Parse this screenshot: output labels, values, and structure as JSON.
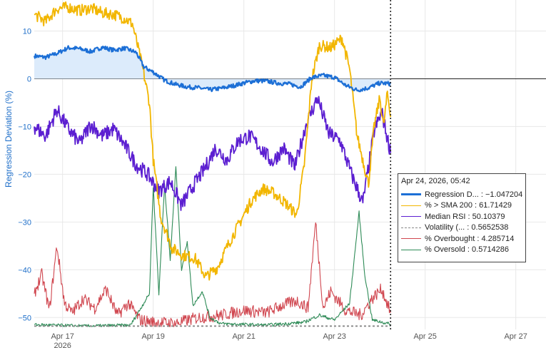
{
  "chart_data": {
    "type": "line",
    "title": "",
    "ylabel": "Regression Deviation (%)",
    "xlabel": "",
    "x_ticks": [
      "Apr 17",
      "Apr 19",
      "Apr 21",
      "Apr 23",
      "Apr 25",
      "Apr 27"
    ],
    "x_year_label": "2026",
    "x_range": [
      "2026-04-16 09:00",
      "2026-04-27 16:00"
    ],
    "y_ticks": [
      10,
      0,
      -10,
      -20,
      -30,
      -40,
      -50
    ],
    "ylim": [
      -52.5,
      16.5
    ],
    "zero_line": 0,
    "grid": true,
    "cursor_time": "2026-04-24 05:42",
    "series": [
      {
        "name": "Regression D...",
        "color": "#1c6fd6",
        "fill_to_zero": true,
        "fill_color": "#dcebfb",
        "points": [
          [
            "2026-04-16 09:00",
            4.8
          ],
          [
            "2026-04-16 15:00",
            4.5
          ],
          [
            "2026-04-16 21:00",
            5.3
          ],
          [
            "2026-04-17 03:00",
            6.5
          ],
          [
            "2026-04-17 09:00",
            6.3
          ],
          [
            "2026-04-17 15:00",
            5.7
          ],
          [
            "2026-04-17 21:00",
            6.6
          ],
          [
            "2026-04-18 03:00",
            6.0
          ],
          [
            "2026-04-18 09:00",
            6.4
          ],
          [
            "2026-04-18 15:00",
            5.5
          ],
          [
            "2026-04-18 19:00",
            2.5
          ],
          [
            "2026-04-19 00:00",
            1.4
          ],
          [
            "2026-04-19 06:00",
            -0.3
          ],
          [
            "2026-04-19 12:00",
            -1.2
          ],
          [
            "2026-04-19 18:00",
            -1.7
          ],
          [
            "2026-04-20 00:00",
            -1.9
          ],
          [
            "2026-04-20 06:00",
            -2.3
          ],
          [
            "2026-04-20 12:00",
            -2.0
          ],
          [
            "2026-04-20 18:00",
            -1.5
          ],
          [
            "2026-04-21 00:00",
            -0.9
          ],
          [
            "2026-04-21 06:00",
            -0.4
          ],
          [
            "2026-04-21 12:00",
            -0.5
          ],
          [
            "2026-04-21 18:00",
            -0.9
          ],
          [
            "2026-04-22 00:00",
            -1.1
          ],
          [
            "2026-04-22 06:00",
            -1.7
          ],
          [
            "2026-04-22 12:00",
            0.3
          ],
          [
            "2026-04-22 18:00",
            0.7
          ],
          [
            "2026-04-23 00:00",
            0.3
          ],
          [
            "2026-04-23 06:00",
            -1.4
          ],
          [
            "2026-04-23 12:00",
            -2.4
          ],
          [
            "2026-04-23 18:00",
            -1.9
          ],
          [
            "2026-04-24 00:00",
            -0.9
          ],
          [
            "2026-04-24 05:42",
            -1.047204
          ]
        ]
      },
      {
        "name": "% > SMA 200",
        "color": "#f2b600",
        "points": [
          [
            "2026-04-16 09:00",
            13.5
          ],
          [
            "2026-04-16 15:00",
            12.0
          ],
          [
            "2026-04-16 21:00",
            14.7
          ],
          [
            "2026-04-17 03:00",
            15.0
          ],
          [
            "2026-04-17 09:00",
            14.3
          ],
          [
            "2026-04-17 15:00",
            14.8
          ],
          [
            "2026-04-17 21:00",
            13.8
          ],
          [
            "2026-04-18 03:00",
            13.5
          ],
          [
            "2026-04-18 09:00",
            12.6
          ],
          [
            "2026-04-18 13:00",
            11.5
          ],
          [
            "2026-04-18 18:00",
            3.0
          ],
          [
            "2026-04-18 22:00",
            -5.0
          ],
          [
            "2026-04-19 00:00",
            -17.0
          ],
          [
            "2026-04-19 04:00",
            -29.0
          ],
          [
            "2026-04-19 10:00",
            -35.5
          ],
          [
            "2026-04-19 16:00",
            -37.0
          ],
          [
            "2026-04-19 22:00",
            -37.5
          ],
          [
            "2026-04-20 04:00",
            -41.5
          ],
          [
            "2026-04-20 10:00",
            -39.5
          ],
          [
            "2026-04-20 16:00",
            -34.5
          ],
          [
            "2026-04-20 22:00",
            -30.0
          ],
          [
            "2026-04-21 04:00",
            -25.5
          ],
          [
            "2026-04-21 10:00",
            -23.0
          ],
          [
            "2026-04-21 16:00",
            -24.0
          ],
          [
            "2026-04-21 22:00",
            -26.0
          ],
          [
            "2026-04-22 04:00",
            -28.5
          ],
          [
            "2026-04-22 08:00",
            -18.0
          ],
          [
            "2026-04-22 12:00",
            0.0
          ],
          [
            "2026-04-22 16:00",
            7.0
          ],
          [
            "2026-04-22 22:00",
            6.5
          ],
          [
            "2026-04-23 04:00",
            8.5
          ],
          [
            "2026-04-23 08:00",
            2.0
          ],
          [
            "2026-04-23 12:00",
            -12.0
          ],
          [
            "2026-04-23 18:00",
            -22.0
          ],
          [
            "2026-04-23 21:00",
            -10.0
          ],
          [
            "2026-04-24 00:00",
            -4.0
          ],
          [
            "2026-04-24 02:00",
            -10.0
          ],
          [
            "2026-04-24 04:00",
            -3.0
          ],
          [
            "2026-04-24 05:42",
            -8.0
          ]
        ]
      },
      {
        "name": "Median RSI",
        "color": "#5c1fd1",
        "points": [
          [
            "2026-04-16 09:00",
            -10.0
          ],
          [
            "2026-04-16 15:00",
            -12.0
          ],
          [
            "2026-04-16 21:00",
            -6.5
          ],
          [
            "2026-04-17 03:00",
            -10.5
          ],
          [
            "2026-04-17 09:00",
            -13.5
          ],
          [
            "2026-04-17 15:00",
            -9.5
          ],
          [
            "2026-04-17 21:00",
            -12.0
          ],
          [
            "2026-04-18 03:00",
            -10.5
          ],
          [
            "2026-04-18 09:00",
            -14.0
          ],
          [
            "2026-04-18 15:00",
            -18.0
          ],
          [
            "2026-04-18 21:00",
            -20.0
          ],
          [
            "2026-04-19 03:00",
            -23.5
          ],
          [
            "2026-04-19 09:00",
            -21.5
          ],
          [
            "2026-04-19 15:00",
            -26.5
          ],
          [
            "2026-04-19 21:00",
            -22.5
          ],
          [
            "2026-04-20 03:00",
            -19.0
          ],
          [
            "2026-04-20 09:00",
            -14.5
          ],
          [
            "2026-04-20 15:00",
            -17.0
          ],
          [
            "2026-04-20 21:00",
            -13.0
          ],
          [
            "2026-04-21 03:00",
            -12.0
          ],
          [
            "2026-04-21 09:00",
            -14.5
          ],
          [
            "2026-04-21 15:00",
            -17.5
          ],
          [
            "2026-04-21 21:00",
            -14.5
          ],
          [
            "2026-04-22 03:00",
            -18.5
          ],
          [
            "2026-04-22 09:00",
            -9.5
          ],
          [
            "2026-04-22 15:00",
            -4.0
          ],
          [
            "2026-04-22 21:00",
            -11.5
          ],
          [
            "2026-04-23 03:00",
            -13.0
          ],
          [
            "2026-04-23 09:00",
            -20.0
          ],
          [
            "2026-04-23 15:00",
            -26.0
          ],
          [
            "2026-04-23 21:00",
            -11.0
          ],
          [
            "2026-04-24 01:00",
            -7.0
          ],
          [
            "2026-04-24 05:42",
            -15.5
          ]
        ]
      },
      {
        "name": "Volatility (...",
        "color": "#888888",
        "dashed": true,
        "points": [
          [
            "2026-04-16 09:00",
            -51.8
          ],
          [
            "2026-04-24 05:42",
            -51.8
          ]
        ]
      },
      {
        "name": "% Overbought",
        "color": "#d0464f",
        "points": [
          [
            "2026-04-16 09:00",
            -45.0
          ],
          [
            "2026-04-16 13:00",
            -41.0
          ],
          [
            "2026-04-16 17:00",
            -48.5
          ],
          [
            "2026-04-16 21:00",
            -35.0
          ],
          [
            "2026-04-17 01:00",
            -47.0
          ],
          [
            "2026-04-17 05:00",
            -49.0
          ],
          [
            "2026-04-17 11:00",
            -46.0
          ],
          [
            "2026-04-17 17:00",
            -48.0
          ],
          [
            "2026-04-17 23:00",
            -44.0
          ],
          [
            "2026-04-18 05:00",
            -49.5
          ],
          [
            "2026-04-18 11:00",
            -47.0
          ],
          [
            "2026-04-18 17:00",
            -50.5
          ],
          [
            "2026-04-19 00:00",
            -51.0
          ],
          [
            "2026-04-19 12:00",
            -51.2
          ],
          [
            "2026-04-20 00:00",
            -50.0
          ],
          [
            "2026-04-20 12:00",
            -49.5
          ],
          [
            "2026-04-21 00:00",
            -48.5
          ],
          [
            "2026-04-21 12:00",
            -49.0
          ],
          [
            "2026-04-21 20:00",
            -47.5
          ],
          [
            "2026-04-22 04:00",
            -46.5
          ],
          [
            "2026-04-22 10:00",
            -48.0
          ],
          [
            "2026-04-22 14:00",
            -30.0
          ],
          [
            "2026-04-22 18:00",
            -48.0
          ],
          [
            "2026-04-22 22:00",
            -44.5
          ],
          [
            "2026-04-23 06:00",
            -48.5
          ],
          [
            "2026-04-23 14:00",
            -49.5
          ],
          [
            "2026-04-23 20:00",
            -46.0
          ],
          [
            "2026-04-24 01:00",
            -44.0
          ],
          [
            "2026-04-24 05:42",
            -49.0
          ]
        ]
      },
      {
        "name": "% Oversold",
        "color": "#2e8b57",
        "points": [
          [
            "2026-04-16 09:00",
            -51.5
          ],
          [
            "2026-04-17 12:00",
            -51.8
          ],
          [
            "2026-04-18 12:00",
            -51.6
          ],
          [
            "2026-04-18 22:00",
            -45.0
          ],
          [
            "2026-04-19 00:00",
            -22.5
          ],
          [
            "2026-04-19 03:00",
            -45.0
          ],
          [
            "2026-04-19 06:00",
            -22.0
          ],
          [
            "2026-04-19 09:00",
            -38.0
          ],
          [
            "2026-04-19 12:00",
            -18.5
          ],
          [
            "2026-04-19 15:00",
            -40.0
          ],
          [
            "2026-04-19 18:00",
            -34.0
          ],
          [
            "2026-04-19 21:00",
            -47.5
          ],
          [
            "2026-04-20 02:00",
            -44.5
          ],
          [
            "2026-04-20 06:00",
            -50.0
          ],
          [
            "2026-04-20 12:00",
            -51.3
          ],
          [
            "2026-04-21 12:00",
            -51.6
          ],
          [
            "2026-04-22 08:00",
            -51.0
          ],
          [
            "2026-04-22 16:00",
            -49.5
          ],
          [
            "2026-04-23 00:00",
            -50.5
          ],
          [
            "2026-04-23 08:00",
            -47.0
          ],
          [
            "2026-04-23 13:00",
            -28.0
          ],
          [
            "2026-04-23 16:00",
            -41.0
          ],
          [
            "2026-04-23 20:00",
            -50.5
          ],
          [
            "2026-04-24 05:42",
            -51.4
          ]
        ]
      }
    ],
    "tooltip": {
      "title": "Apr 24, 2026, 05:42",
      "rows": [
        {
          "label": "Regression D... : ",
          "value": "−1.047204"
        },
        {
          "label": "% > SMA 200 : ",
          "value": "61.71429"
        },
        {
          "label": "Median RSI : ",
          "value": "50.10379"
        },
        {
          "label": "Volatility (... : ",
          "value": "0.5652538"
        },
        {
          "label": "% Overbought : ",
          "value": "4.285714"
        },
        {
          "label": "% Oversold : ",
          "value": "0.5714286"
        }
      ]
    }
  }
}
